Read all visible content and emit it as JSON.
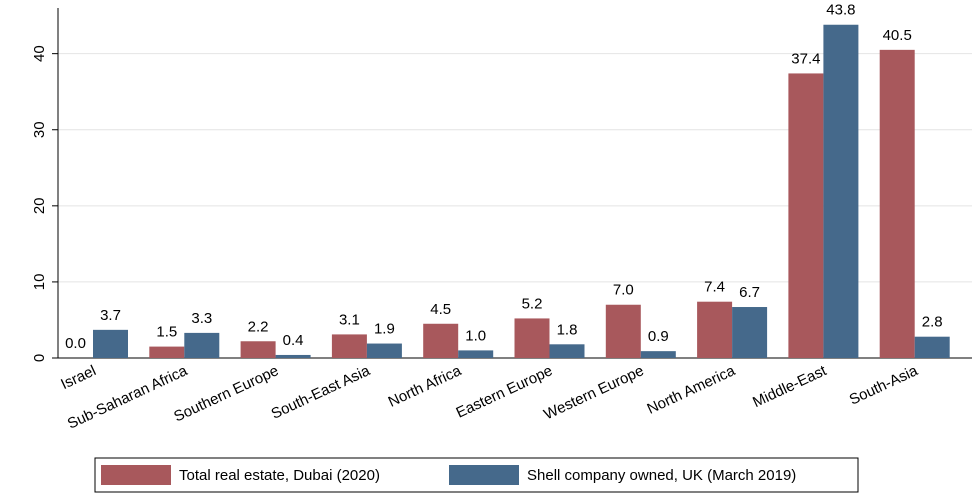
{
  "chart_data": {
    "type": "bar",
    "categories": [
      "Israel",
      "Sub-Saharan Africa",
      "Southern Europe",
      "South-East Asia",
      "North Africa",
      "Eastern Europe",
      "Western Europe",
      "North America",
      "Middle-East",
      "South-Asia"
    ],
    "series": [
      {
        "name": "Total real estate, Dubai (2020)",
        "color": "#a8585c",
        "values": [
          0,
          1.5,
          2.2,
          3.1,
          4.5,
          5.2,
          7.0,
          7.4,
          37.4,
          40.5
        ],
        "value_labels": [
          "0.0",
          "1.5",
          "2.2",
          "3.1",
          "4.5",
          "5.2",
          "7.0",
          "7.4",
          "37.4",
          "40.5"
        ]
      },
      {
        "name": "Shell company owned, UK (March 2019)",
        "color": "#45698b",
        "values": [
          3.7,
          3.3,
          0.4,
          1.9,
          1.0,
          1.8,
          0.9,
          6.7,
          43.8,
          2.8
        ],
        "value_labels": [
          "3.7",
          "3.3",
          "0.4",
          "1.9",
          "1.0",
          "1.8",
          "0.9",
          "6.7",
          "43.8",
          "2.8"
        ]
      }
    ],
    "ylim": [
      0,
      46
    ],
    "yticks": [
      0,
      10,
      20,
      30,
      40
    ],
    "grid": true,
    "legend": "bottom"
  }
}
